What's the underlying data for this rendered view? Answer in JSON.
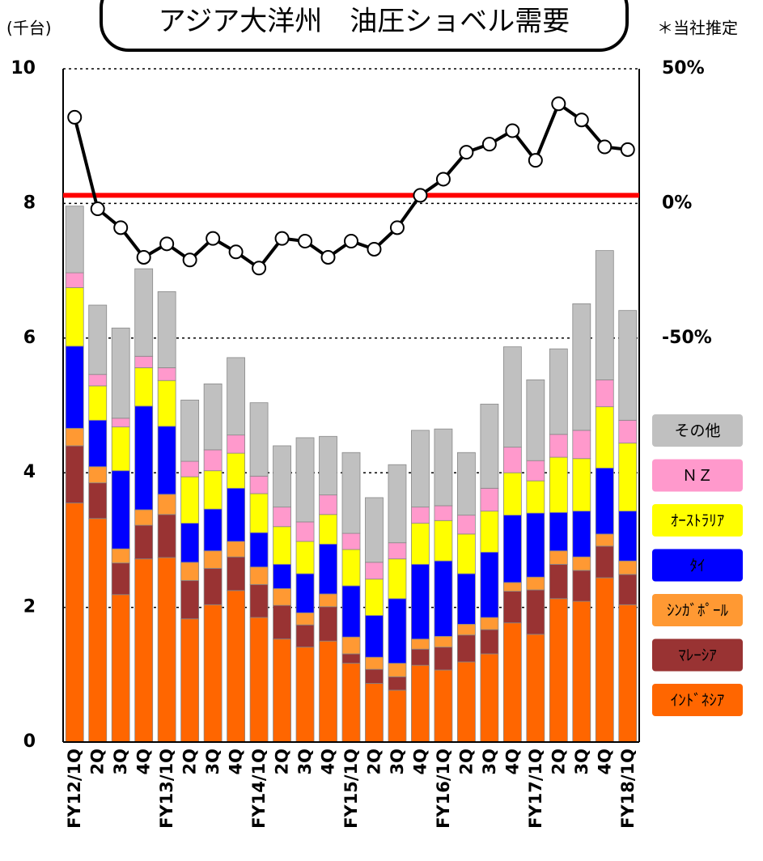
{
  "chart_data": {
    "type": "bar",
    "stacked": true,
    "title": "アジア大洋州　油圧ショベル需要",
    "y_label": "(千台)",
    "note": "＊当社推定",
    "categories": [
      "FY12/1Q",
      "2Q",
      "3Q",
      "4Q",
      "FY13/1Q",
      "2Q",
      "3Q",
      "4Q",
      "FY14/1Q",
      "2Q",
      "3Q",
      "4Q",
      "FY15/1Q",
      "2Q",
      "3Q",
      "4Q",
      "FY16/1Q",
      "2Q",
      "3Q",
      "4Q",
      "FY17/1Q",
      "2Q",
      "3Q",
      "4Q",
      "FY18/1Q"
    ],
    "series": [
      {
        "name": "ｲﾝﾄﾞﾈｼｱ",
        "color": "#ff6600",
        "values": [
          3.55,
          3.32,
          2.19,
          2.72,
          2.74,
          1.83,
          2.04,
          2.25,
          1.85,
          1.53,
          1.41,
          1.5,
          1.17,
          0.87,
          0.77,
          1.14,
          1.07,
          1.19,
          1.31,
          1.77,
          1.6,
          2.13,
          2.09,
          2.44,
          2.04
        ]
      },
      {
        "name": "ﾏﾚｰｼｱ",
        "color": "#993333",
        "values": [
          0.85,
          0.53,
          0.47,
          0.5,
          0.64,
          0.57,
          0.54,
          0.5,
          0.49,
          0.5,
          0.33,
          0.51,
          0.14,
          0.21,
          0.2,
          0.24,
          0.34,
          0.4,
          0.36,
          0.47,
          0.66,
          0.51,
          0.46,
          0.47,
          0.45
        ]
      },
      {
        "name": "ｼﾝｶﾞﾎﾟｰﾙ",
        "color": "#ff9933",
        "values": [
          0.26,
          0.24,
          0.21,
          0.23,
          0.3,
          0.27,
          0.26,
          0.23,
          0.26,
          0.25,
          0.18,
          0.19,
          0.25,
          0.18,
          0.2,
          0.15,
          0.16,
          0.16,
          0.18,
          0.13,
          0.19,
          0.2,
          0.2,
          0.18,
          0.2
        ]
      },
      {
        "name": "ﾀｲ",
        "color": "#0000ff",
        "values": [
          1.22,
          0.69,
          1.16,
          1.54,
          1.01,
          0.58,
          0.62,
          0.79,
          0.51,
          0.36,
          0.58,
          0.74,
          0.76,
          0.62,
          0.96,
          1.11,
          1.12,
          0.75,
          0.97,
          1.0,
          0.95,
          0.57,
          0.68,
          0.98,
          0.74
        ]
      },
      {
        "name": "ｵｰｽﾄﾗﾘｱ",
        "color": "#ffff00",
        "values": [
          0.87,
          0.51,
          0.65,
          0.57,
          0.68,
          0.69,
          0.57,
          0.52,
          0.58,
          0.56,
          0.48,
          0.44,
          0.54,
          0.54,
          0.59,
          0.61,
          0.6,
          0.59,
          0.61,
          0.63,
          0.48,
          0.82,
          0.78,
          0.91,
          1.01
        ]
      },
      {
        "name": "ＮＺ",
        "color": "#ff99cc",
        "values": [
          0.22,
          0.17,
          0.13,
          0.17,
          0.19,
          0.23,
          0.31,
          0.27,
          0.26,
          0.29,
          0.29,
          0.29,
          0.24,
          0.25,
          0.24,
          0.24,
          0.22,
          0.28,
          0.34,
          0.38,
          0.3,
          0.34,
          0.42,
          0.4,
          0.34
        ]
      },
      {
        "name": "その他",
        "color": "#c0c0c0",
        "values": [
          0.99,
          1.03,
          1.34,
          1.3,
          1.13,
          0.91,
          0.98,
          1.15,
          1.09,
          0.91,
          1.25,
          0.87,
          1.2,
          0.96,
          1.16,
          1.14,
          1.14,
          0.93,
          1.25,
          1.49,
          1.2,
          1.27,
          1.88,
          1.92,
          1.63
        ]
      }
    ],
    "line": {
      "color": "#000000",
      "axis": "y2",
      "values": [
        32,
        -2,
        -9,
        -20,
        -15,
        -21,
        -13,
        -18,
        -24,
        -13,
        -14,
        -20,
        -14,
        -17,
        -9,
        3,
        9,
        19,
        22,
        27,
        16,
        37,
        31,
        21,
        20
      ]
    },
    "hline": {
      "axis": "y2",
      "value": 3,
      "color": "#ff0000"
    },
    "ylim": [
      0,
      10
    ],
    "yticks": [
      0,
      2,
      4,
      6,
      8,
      10
    ],
    "y2lim": [
      -200,
      50
    ],
    "y2ticks": [
      {
        "value": -50,
        "label": "-50%"
      },
      {
        "value": 0,
        "label": "0%"
      },
      {
        "value": 50,
        "label": "50%"
      }
    ],
    "grid": true,
    "legend": "right"
  }
}
